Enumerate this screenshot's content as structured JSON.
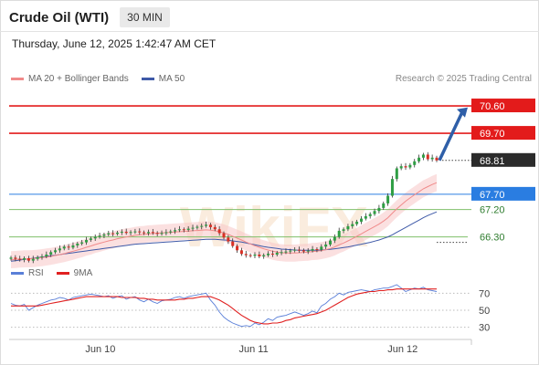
{
  "header": {
    "title": "Crude Oil (WTI)",
    "interval": "30 MIN",
    "datetime": "Thursday, June 12, 2025 1:42:47 AM CET"
  },
  "legend": {
    "ma20_label": "MA 20 + Bollinger Bands",
    "ma50_label": "MA 50",
    "credit": "Research © 2025 Trading Central"
  },
  "rsi_legend": {
    "rsi_label": "RSI",
    "ma9_label": "9MA"
  },
  "colors": {
    "resistance": "#e31b1b",
    "support": "#2a7de1",
    "support_line": "#7fbf6a",
    "price_tag": "#2b2b2b",
    "ma20": "#f08a8a",
    "ma50": "#3f5aa8",
    "rsi": "#5a7fd8",
    "ma9": "#e02020",
    "arrow": "#2f5fa8",
    "watermark": "#f3d5b5"
  },
  "watermark_text": "WikiFX",
  "chart_data": {
    "type": "candlestick",
    "price_range": [
      65.45,
      71.2
    ],
    "x_labels": [
      {
        "label": "Jun 10",
        "pos": 0.21
      },
      {
        "label": "Jun 11",
        "pos": 0.57
      },
      {
        "label": "Jun 12",
        "pos": 0.92
      }
    ],
    "levels": [
      {
        "value": 70.6,
        "label": "70.60",
        "style": "resistance",
        "tag": "filled-red"
      },
      {
        "value": 69.7,
        "label": "69.70",
        "style": "resistance",
        "tag": "filled-red"
      },
      {
        "value": 68.81,
        "label": "68.81",
        "style": "current",
        "tag": "filled-dark"
      },
      {
        "value": 67.7,
        "label": "67.70",
        "style": "pivot",
        "tag": "filled-blue"
      },
      {
        "value": 67.2,
        "label": "67.20",
        "style": "support",
        "tag": "text-green"
      },
      {
        "value": 66.3,
        "label": "66.30",
        "style": "support",
        "tag": "text-green"
      }
    ],
    "candles_close": [
      65.62,
      65.58,
      65.55,
      65.6,
      65.52,
      65.58,
      65.63,
      65.66,
      65.72,
      65.8,
      65.86,
      65.92,
      65.98,
      65.95,
      66.02,
      66.08,
      66.12,
      66.2,
      66.25,
      66.3,
      66.34,
      66.38,
      66.42,
      66.4,
      66.44,
      66.47,
      66.43,
      66.46,
      66.48,
      66.45,
      66.42,
      66.46,
      66.43,
      66.4,
      66.43,
      66.45,
      66.48,
      66.52,
      66.55,
      66.53,
      66.57,
      66.6,
      66.63,
      66.66,
      66.7,
      66.62,
      66.55,
      66.42,
      66.28,
      66.15,
      66.0,
      65.86,
      65.74,
      65.7,
      65.68,
      65.72,
      65.66,
      65.7,
      65.75,
      65.72,
      65.78,
      65.8,
      65.82,
      65.85,
      65.88,
      65.86,
      65.82,
      65.85,
      65.9,
      65.88,
      65.98,
      66.05,
      66.18,
      66.3,
      66.5,
      66.55,
      66.65,
      66.72,
      66.8,
      66.9,
      66.98,
      67.05,
      67.15,
      67.25,
      67.4,
      67.65,
      68.2,
      68.55,
      68.62,
      68.58,
      68.66,
      68.78,
      68.9,
      69.0,
      68.85,
      68.9,
      68.81
    ],
    "ma20": [
      65.55,
      65.56,
      65.57,
      65.58,
      65.58,
      65.59,
      65.6,
      65.62,
      65.64,
      65.66,
      65.69,
      65.72,
      65.75,
      65.79,
      65.83,
      65.87,
      65.91,
      65.96,
      66.0,
      66.05,
      66.09,
      66.13,
      66.17,
      66.2,
      66.24,
      66.27,
      66.3,
      66.32,
      66.35,
      66.37,
      66.38,
      66.4,
      66.41,
      66.42,
      66.43,
      66.44,
      66.45,
      66.46,
      66.47,
      66.48,
      66.49,
      66.5,
      66.51,
      66.52,
      66.53,
      66.52,
      66.5,
      66.47,
      66.43,
      66.38,
      66.32,
      66.26,
      66.2,
      66.13,
      66.07,
      66.01,
      65.96,
      65.91,
      65.87,
      65.83,
      65.8,
      65.78,
      65.77,
      65.77,
      65.77,
      65.78,
      65.79,
      65.8,
      65.82,
      65.83,
      65.85,
      65.88,
      65.92,
      65.97,
      66.04,
      66.1,
      66.17,
      66.24,
      66.32,
      66.4,
      66.48,
      66.56,
      66.64,
      66.72,
      66.82,
      66.93,
      67.08,
      67.22,
      67.35,
      67.47,
      67.58,
      67.68,
      67.78,
      67.88,
      67.95,
      68.02,
      68.08
    ],
    "ma50": [
      65.5,
      65.52,
      65.54,
      65.56,
      65.58,
      65.6,
      65.62,
      65.64,
      65.66,
      65.68,
      65.7,
      65.72,
      65.74,
      65.76,
      65.78,
      65.8,
      65.82,
      65.84,
      65.86,
      65.88,
      65.9,
      65.92,
      65.94,
      65.96,
      65.98,
      66.0,
      66.02,
      66.04,
      66.06,
      66.07,
      66.08,
      66.09,
      66.1,
      66.11,
      66.12,
      66.13,
      66.14,
      66.15,
      66.16,
      66.17,
      66.18,
      66.19,
      66.2,
      66.21,
      66.22,
      66.22,
      66.22,
      66.21,
      66.2,
      66.19,
      66.17,
      66.15,
      66.13,
      66.1,
      66.07,
      66.04,
      66.01,
      65.98,
      65.96,
      65.94,
      65.92,
      65.9,
      65.89,
      65.88,
      65.87,
      65.86,
      65.86,
      65.86,
      65.86,
      65.86,
      65.87,
      65.88,
      65.89,
      65.91,
      65.93,
      65.95,
      65.97,
      66.0,
      66.03,
      66.06,
      66.09,
      66.12,
      66.16,
      66.2,
      66.25,
      66.3,
      66.37,
      66.45,
      66.53,
      66.61,
      66.69,
      66.77,
      66.85,
      66.93,
      67.0,
      67.06,
      67.12
    ],
    "rsi_range": [
      20,
      80
    ],
    "rsi_ticks": [
      30,
      50,
      70
    ],
    "rsi": [
      58,
      56,
      55,
      57,
      50,
      53,
      56,
      58,
      60,
      62,
      63,
      65,
      64,
      62,
      65,
      66,
      67,
      68,
      69,
      68,
      67,
      66,
      67,
      64,
      66,
      67,
      63,
      65,
      66,
      62,
      60,
      63,
      60,
      58,
      61,
      62,
      63,
      65,
      66,
      64,
      66,
      67,
      68,
      69,
      70,
      62,
      56,
      48,
      42,
      38,
      35,
      33,
      31,
      32,
      31,
      35,
      33,
      36,
      40,
      38,
      42,
      43,
      44,
      46,
      48,
      46,
      44,
      46,
      49,
      47,
      55,
      58,
      63,
      66,
      70,
      68,
      71,
      72,
      73,
      74,
      73,
      72,
      74,
      75,
      76,
      76,
      78,
      80,
      76,
      72,
      74,
      76,
      75,
      77,
      74,
      73,
      72
    ],
    "ma9": [
      55,
      55,
      55,
      55,
      55,
      55,
      55,
      56,
      57,
      58,
      59,
      60,
      61,
      62,
      63,
      64,
      65,
      66,
      66,
      66,
      66,
      66,
      66,
      66,
      66,
      65,
      65,
      65,
      65,
      64,
      64,
      63,
      63,
      62,
      62,
      62,
      62,
      62,
      63,
      63,
      64,
      64,
      65,
      66,
      66,
      66,
      64,
      62,
      59,
      56,
      52,
      48,
      44,
      41,
      38,
      36,
      35,
      34,
      34,
      35,
      35,
      36,
      38,
      39,
      41,
      42,
      43,
      44,
      45,
      46,
      48,
      50,
      53,
      56,
      59,
      62,
      65,
      67,
      69,
      70,
      71,
      72,
      72,
      73,
      73,
      74,
      74,
      75,
      75,
      75,
      75,
      75,
      75,
      75,
      75,
      75,
      75
    ]
  }
}
